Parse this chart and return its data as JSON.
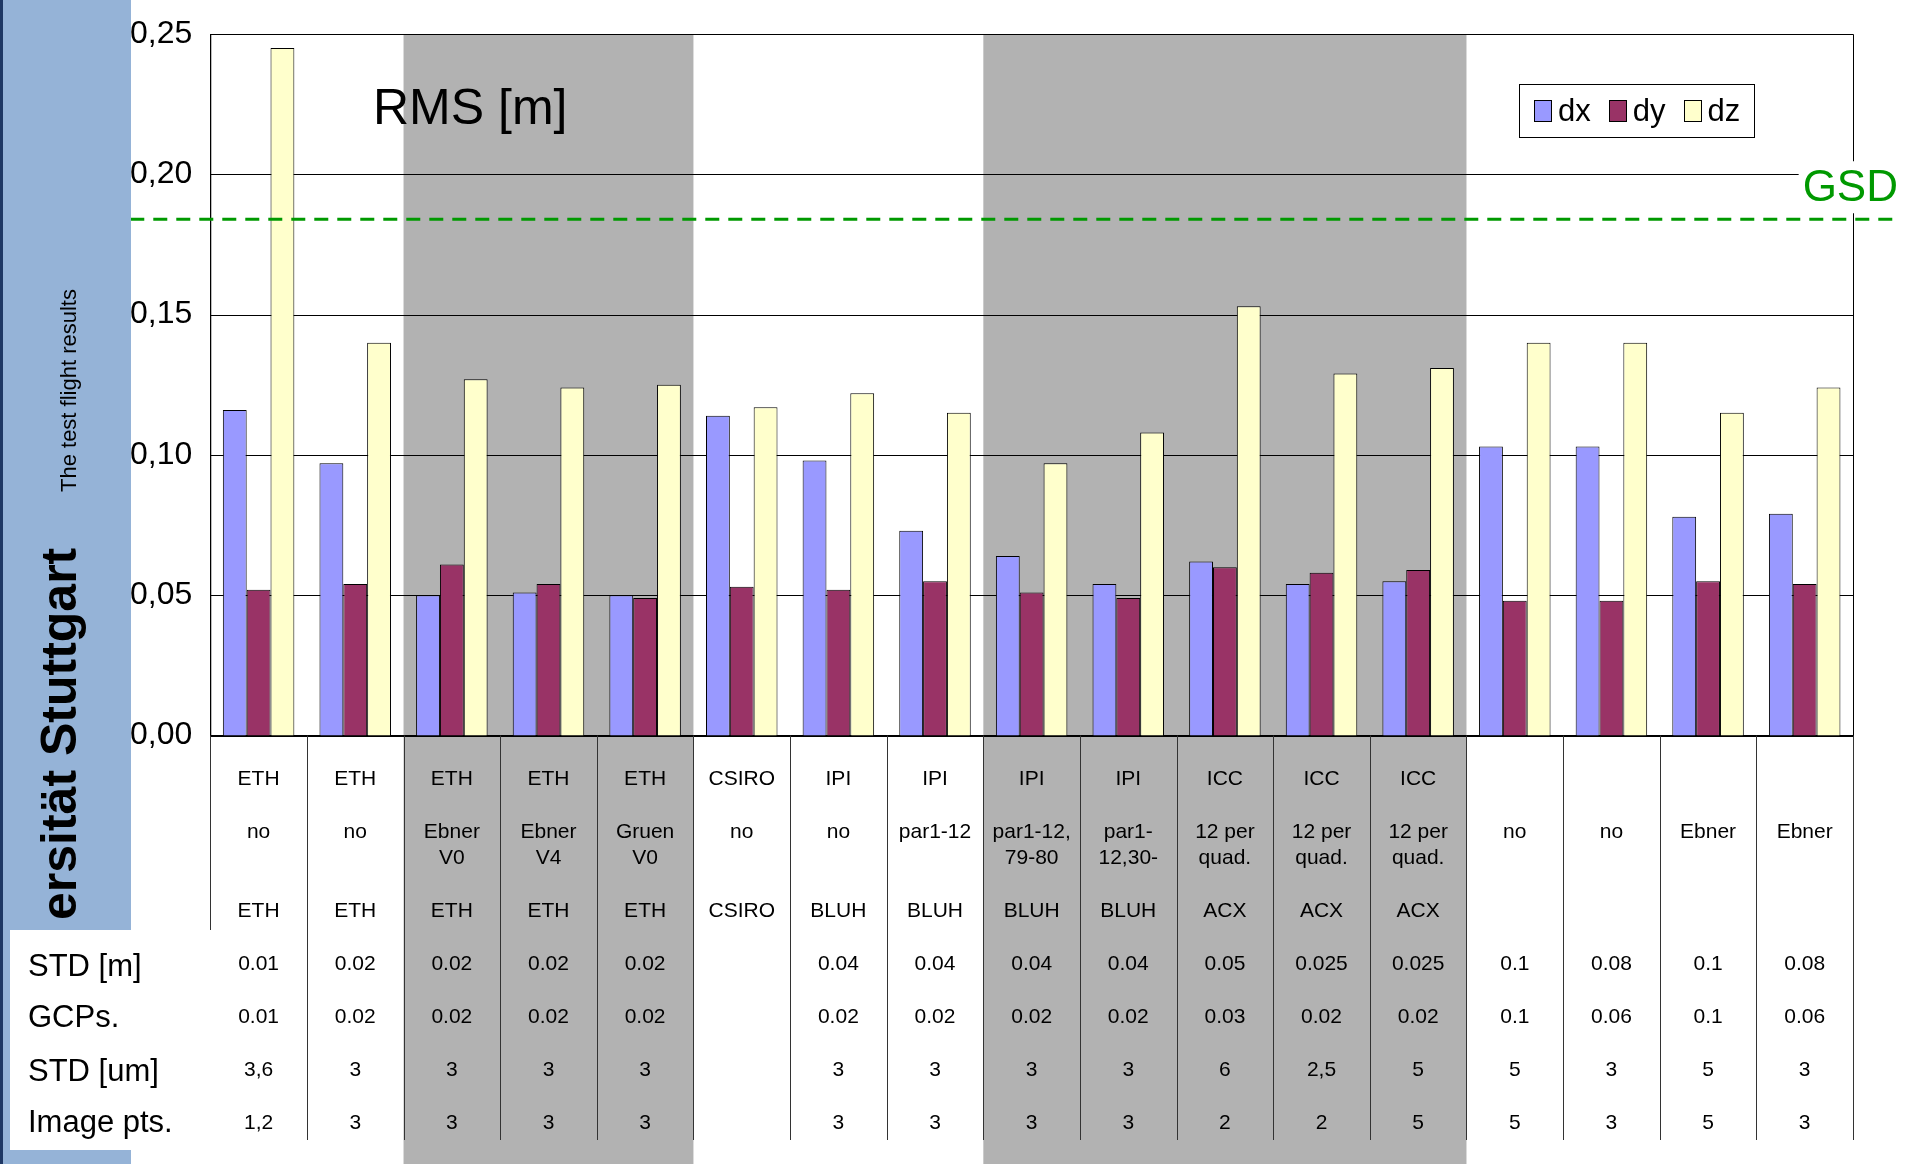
{
  "chart_data": {
    "type": "bar",
    "title": "RMS [m]",
    "categories": [
      "ETH\nno\n\nETH\n0.01\n0.01\n3,6\n1,2",
      "ETH\nno\n\nETH\n0.02\n0.02\n3\n3",
      "ETH\nEbner\nV0\nETH\n0.02\n0.02\n3\n3",
      "ETH\nEbner\nV4\nETH\n0.02\n0.02\n3\n3",
      "ETH\nGruen\nV0\nETH\n0.02\n0.02\n3\n3",
      "CSIRO\nno\n\nCSIRO\n\n\n\n",
      "IPI\nno\n\nBLUH\n0.04\n0.02\n3\n3",
      "IPI\npar1-12\n\nBLUH\n0.04\n0.02\n3\n3",
      "IPI\npar1-12,\n79-80\nBLUH\n0.04\n0.02\n3\n3",
      "IPI\npar1-\n12,30-\nBLUH\n0.04\n0.02\n3\n3",
      "ICC\n12 per\nquad.\nACX\n0.05\n0.03\n6\n2",
      "ICC\n12 per\nquad.\nACX\n0.025\n0.02\n2,5\n2",
      "ICC\n12 per\nquad.\nACX\n0.025\n0.02\n5\n5",
      "\nno\n\n\n0.1\n0.1\n5\n5",
      "\nno\n\n\n0.08\n0.06\n3\n3",
      "\nEbner\n\n\n0.1\n0.1\n5\n5",
      "\nEbner\n\n\n0.08\n0.06\n3\n3"
    ],
    "series": [
      {
        "name": "dx",
        "color": "#9999ff",
        "values": [
          0.116,
          0.097,
          0.05,
          0.051,
          0.05,
          0.114,
          0.098,
          0.073,
          0.064,
          0.054,
          0.062,
          0.054,
          0.055,
          0.103,
          0.103,
          0.078,
          0.079
        ]
      },
      {
        "name": "dy",
        "color": "#993366",
        "values": [
          0.052,
          0.054,
          0.061,
          0.054,
          0.049,
          0.053,
          0.052,
          0.055,
          0.051,
          0.049,
          0.06,
          0.058,
          0.059,
          0.048,
          0.048,
          0.055,
          0.054
        ]
      },
      {
        "name": "dz",
        "color": "#ffffcc",
        "values": [
          0.245,
          0.14,
          0.127,
          0.124,
          0.125,
          0.117,
          0.122,
          0.115,
          0.097,
          0.108,
          0.153,
          0.129,
          0.131,
          0.14,
          0.14,
          0.115,
          0.124
        ]
      }
    ],
    "ylim": [
      0,
      0.25
    ],
    "yticks": [
      {
        "value": 0,
        "label": "0,00"
      },
      {
        "value": 0.05,
        "label": "0,05"
      },
      {
        "value": 0.1,
        "label": "0,10"
      },
      {
        "value": 0.15,
        "label": "0,15"
      },
      {
        "value": 0.2,
        "label": "0,20"
      },
      {
        "value": 0.25,
        "label": "0,25"
      }
    ],
    "grid": "y",
    "legend": "top right",
    "ref_lines": [
      {
        "axis": "y",
        "value": 0.184,
        "label": "GSD",
        "color": "#009900",
        "line_style": "dashed"
      }
    ],
    "bands": [
      {
        "axis": "x",
        "from": "ETH\nEbner\nV0\nETH\n0.02\n0.02\n3\n3",
        "to": "ETH\nGruen\nV0\nETH\n0.02\n0.02\n3\n3",
        "color": "#b2b2b2"
      },
      {
        "axis": "x",
        "from": "IPI\npar1-12,\n79-80\nBLUH\n0.04\n0.02\n3\n3",
        "to": "ICC\n12 per\nquad.\nACX\n0.025\n0.02\n5\n5",
        "color": "#b2b2b2"
      }
    ],
    "annotations": [
      "The test flight results",
      "ersität Stuttgart",
      "STD [m]",
      "GCPs.",
      "STD [um]",
      "Image pts."
    ]
  }
}
